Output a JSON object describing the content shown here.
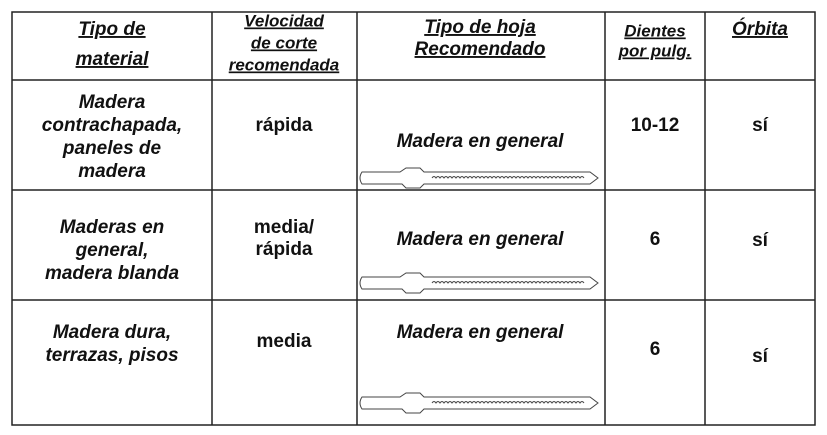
{
  "table": {
    "header": [
      [
        "Tipo de",
        "material"
      ],
      [
        "Velocidad",
        "de corte",
        "recomendada"
      ],
      [
        "Tipo de hoja",
        "Recomendado"
      ],
      [
        "Dientes",
        "por pulg."
      ],
      [
        "Órbita"
      ]
    ],
    "rows": [
      {
        "material": [
          "Madera",
          "contrachapada,",
          "paneles de",
          "madera"
        ],
        "speed": [
          "rápida"
        ],
        "blade": "Madera en general",
        "teeth": "10-12",
        "orbit": "sí"
      },
      {
        "material": [
          "Maderas en",
          "general,",
          "madera blanda"
        ],
        "speed": [
          "media/",
          "rápida"
        ],
        "blade": "Madera en general",
        "teeth": "6",
        "orbit": "sí"
      },
      {
        "material": [
          "Madera dura,",
          "terrazas, pisos"
        ],
        "speed": [
          "media"
        ],
        "blade": "Madera en general",
        "teeth": "6",
        "orbit": "sí"
      }
    ]
  }
}
